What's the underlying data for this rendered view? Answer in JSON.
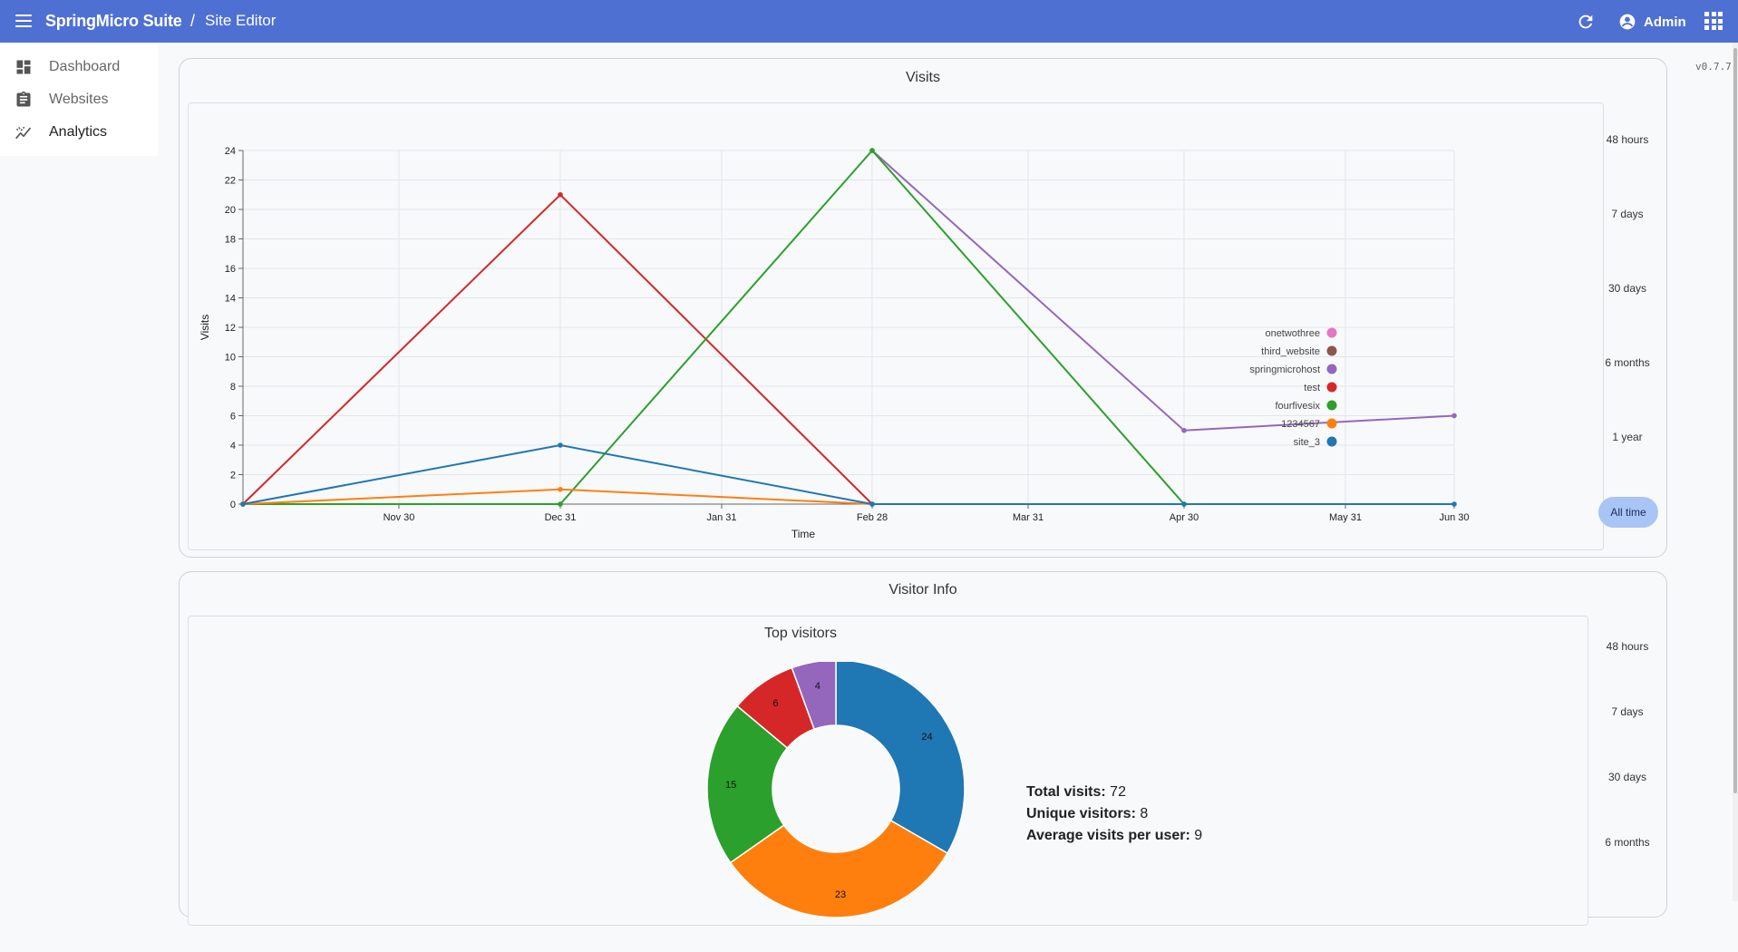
{
  "header": {
    "brand": "SpringMicro Suite",
    "separator": "/",
    "breadcrumb": "Site Editor",
    "user_name": "Admin"
  },
  "sidebar": {
    "items": [
      {
        "label": "Dashboard",
        "icon": "dashboard-icon"
      },
      {
        "label": "Websites",
        "icon": "clipboard-icon"
      },
      {
        "label": "Analytics",
        "icon": "analytics-icon",
        "active": true
      }
    ]
  },
  "version": "v0.7.7",
  "visits_card": {
    "title": "Visits",
    "ranges": [
      "48 hours",
      "7 days",
      "30 days",
      "6 months",
      "1 year",
      "All time"
    ],
    "active_range": "All time"
  },
  "visitor_card": {
    "title": "Visitor Info",
    "subtitle": "Top visitors",
    "ranges": [
      "48 hours",
      "7 days",
      "30 days",
      "6 months"
    ],
    "stats": {
      "total_label": "Total visits:",
      "total_value": "72",
      "unique_label": "Unique visitors:",
      "unique_value": "8",
      "avg_label": "Average visits per user:",
      "avg_value": "9"
    }
  },
  "colors": {
    "header": "#4f70d3",
    "onetwothree": "#e377c2",
    "third_website": "#8c564b",
    "springmicrohost": "#9467bd",
    "test": "#d62728",
    "fourfivesix": "#2ca02c",
    "1234567": "#ff7f0e",
    "site_3": "#1f77b4"
  },
  "chart_data": [
    {
      "type": "line",
      "xlabel": "Time",
      "ylabel": "Visits",
      "ylim": [
        0,
        24
      ],
      "yticks": [
        0,
        2,
        4,
        6,
        8,
        10,
        12,
        14,
        16,
        18,
        20,
        22,
        24
      ],
      "xticks": [
        "Nov 30",
        "Dec 31",
        "Jan 31",
        "Feb 28",
        "Mar 31",
        "Apr 30",
        "May 31",
        "Jun 30"
      ],
      "x": [
        "Nov 1",
        "Dec 31",
        "Feb 28",
        "Apr 30",
        "Jun 30"
      ],
      "grid": true,
      "legend_position": "right",
      "series": [
        {
          "name": "onetwothree",
          "color": "#e377c2",
          "points": []
        },
        {
          "name": "third_website",
          "color": "#8c564b",
          "points": []
        },
        {
          "name": "springmicrohost",
          "color": "#9467bd",
          "points": [
            [
              "Feb 28",
              24
            ],
            [
              "Apr 30",
              5
            ],
            [
              "Jun 30",
              6
            ]
          ]
        },
        {
          "name": "test",
          "color": "#d62728",
          "points": [
            [
              "Nov 1",
              0
            ],
            [
              "Dec 31",
              21
            ],
            [
              "Feb 28",
              0
            ]
          ]
        },
        {
          "name": "fourfivesix",
          "color": "#2ca02c",
          "points": [
            [
              "Nov 1",
              0
            ],
            [
              "Dec 31",
              0
            ],
            [
              "Feb 28",
              24
            ],
            [
              "Apr 30",
              0
            ]
          ]
        },
        {
          "name": "1234567",
          "color": "#ff7f0e",
          "points": [
            [
              "Nov 1",
              0
            ],
            [
              "Dec 31",
              1
            ],
            [
              "Feb 28",
              0
            ]
          ]
        },
        {
          "name": "site_3",
          "color": "#1f77b4",
          "points": [
            [
              "Nov 1",
              0
            ],
            [
              "Dec 31",
              4
            ],
            [
              "Feb 28",
              0
            ],
            [
              "Apr 30",
              0
            ],
            [
              "Jun 30",
              0
            ]
          ]
        }
      ]
    },
    {
      "type": "pie",
      "title": "Top visitors",
      "slices": [
        {
          "label": "site_3",
          "value": 24,
          "color": "#1f77b4"
        },
        {
          "label": "1234567",
          "value": 23,
          "color": "#ff7f0e",
          "display": "23"
        },
        {
          "label": "fourfivesix",
          "value": 15,
          "color": "#2ca02c"
        },
        {
          "label": "test",
          "value": 6,
          "color": "#d62728"
        },
        {
          "label": "springmicrohost",
          "value": 4,
          "color": "#9467bd"
        }
      ]
    }
  ]
}
